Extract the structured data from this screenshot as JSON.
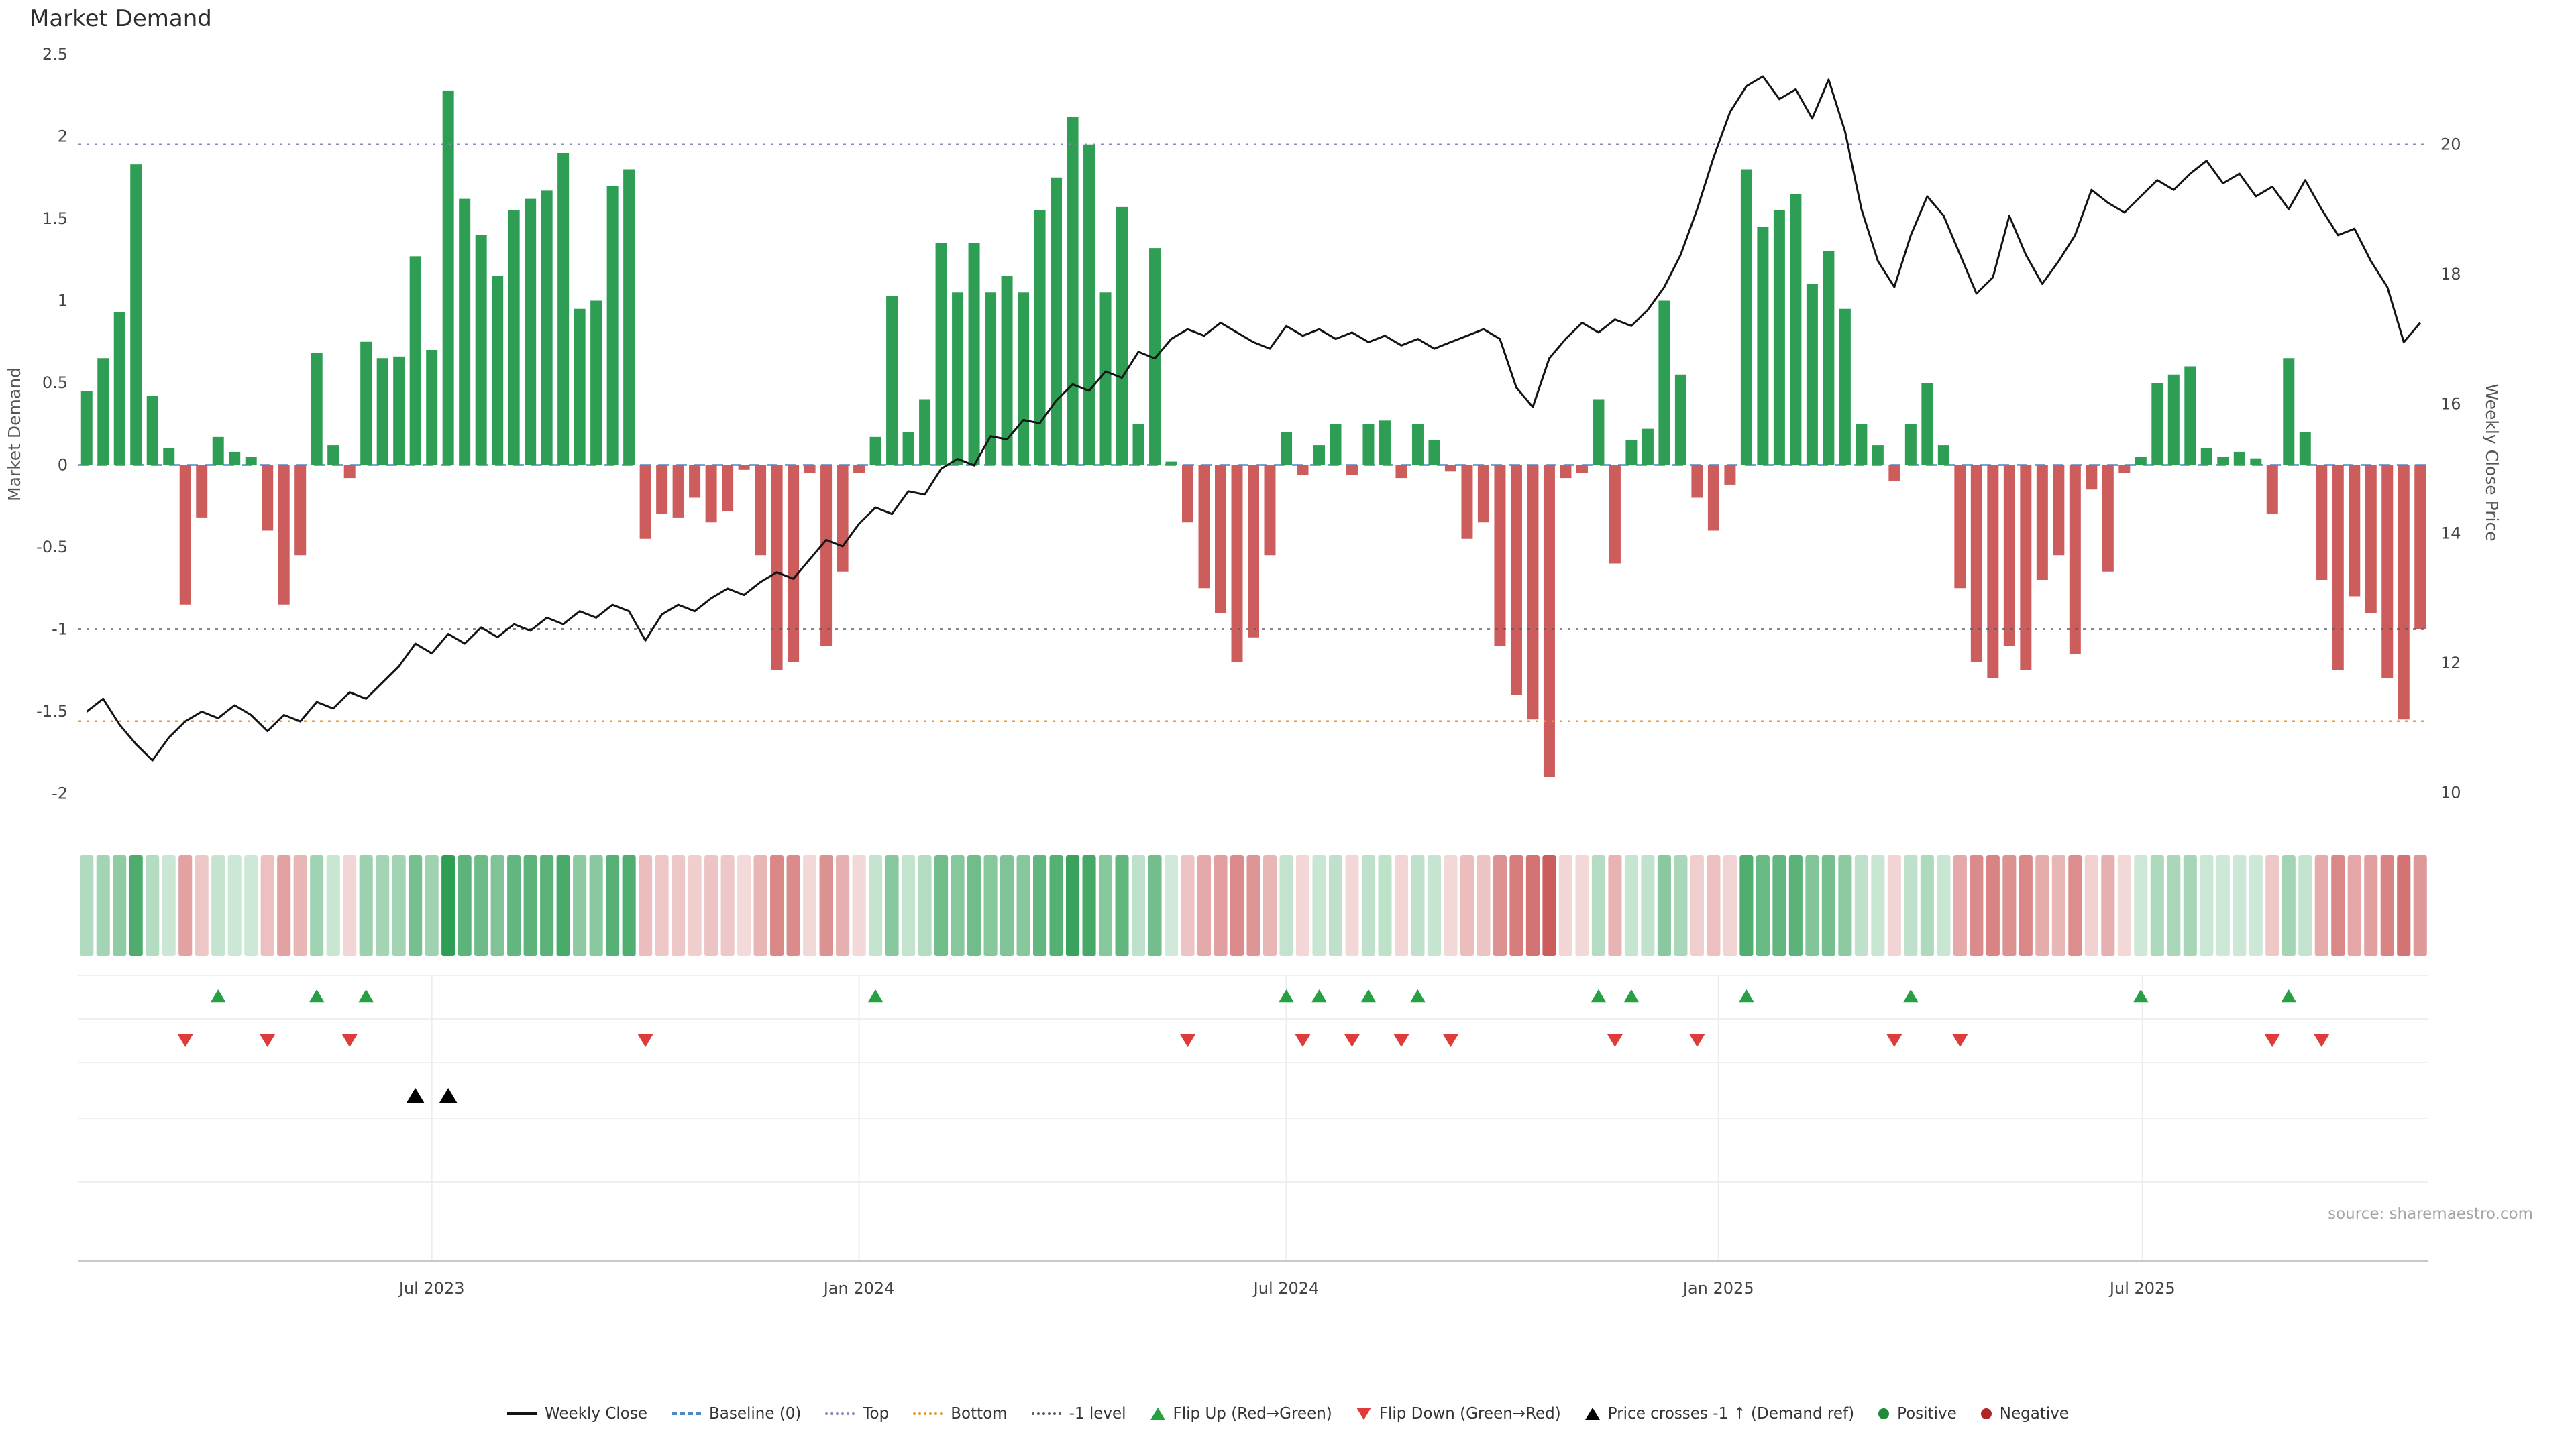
{
  "title": "Market Demand",
  "source": "source: sharemaestro.com",
  "colors": {
    "positive": "#2e9e54",
    "negative": "#cd5c5c",
    "price_line": "#141414",
    "baseline": "#4f86c6",
    "top": "#8a8ab8",
    "bottom": "#e8972f",
    "minus_one": "#5a5a6e",
    "flip_up": "#27a043",
    "flip_down": "#e03b3b",
    "cross": "#000000"
  },
  "chart_data": {
    "type": "combo",
    "x_unit": "week",
    "n_points": 143,
    "x_ticks": [
      {
        "label": "Jul 2023",
        "week": 21
      },
      {
        "label": "Jan 2024",
        "week": 47
      },
      {
        "label": "Jul 2024",
        "week": 73
      },
      {
        "label": "Jan 2025",
        "week": 99.3
      },
      {
        "label": "Jul 2025",
        "week": 125.1
      }
    ],
    "left_axis": {
      "title": "Market Demand",
      "ticks": [
        2.5,
        2,
        1.5,
        1,
        0.5,
        0,
        -0.5,
        -1,
        -1.5,
        -2
      ],
      "range": [
        -2.12,
        2.56
      ]
    },
    "right_axis": {
      "title": "Weekly Close Price",
      "ticks": [
        20,
        18,
        16,
        14,
        12,
        10
      ],
      "range": [
        9.84,
        21.56
      ]
    },
    "reference_lines": [
      {
        "name": "Baseline (0)",
        "value": 0,
        "style": "dashed",
        "color_key": "baseline"
      },
      {
        "name": "Top",
        "value": 1.95,
        "style": "dotted",
        "color_key": "top"
      },
      {
        "name": "Bottom",
        "value": -1.56,
        "style": "dotted",
        "color_key": "bottom"
      },
      {
        "name": "-1 level",
        "value": -1,
        "style": "dotted",
        "color_key": "minus_one"
      }
    ],
    "demand": [
      0.45,
      0.65,
      0.93,
      1.83,
      0.42,
      0.1,
      -0.85,
      -0.32,
      0.17,
      0.08,
      0.05,
      -0.4,
      -0.85,
      -0.55,
      0.68,
      0.12,
      -0.08,
      0.75,
      0.65,
      0.66,
      1.27,
      0.7,
      2.28,
      1.62,
      1.4,
      1.15,
      1.55,
      1.62,
      1.67,
      1.9,
      0.95,
      1.0,
      1.7,
      1.8,
      -0.45,
      -0.3,
      -0.32,
      -0.2,
      -0.35,
      -0.28,
      -0.03,
      -0.55,
      -1.25,
      -1.2,
      -0.05,
      -1.1,
      -0.65,
      -0.05,
      0.17,
      1.03,
      0.2,
      0.4,
      1.35,
      1.05,
      1.35,
      1.05,
      1.15,
      1.05,
      1.55,
      1.75,
      2.12,
      1.95,
      1.05,
      1.57,
      0.25,
      1.32,
      0.02,
      -0.35,
      -0.75,
      -0.9,
      -1.2,
      -1.05,
      -0.55,
      0.2,
      -0.06,
      0.12,
      0.25,
      -0.06,
      0.25,
      0.27,
      -0.08,
      0.25,
      0.15,
      -0.04,
      -0.45,
      -0.35,
      -1.1,
      -1.4,
      -1.55,
      -1.9,
      -0.08,
      -0.05,
      0.4,
      -0.6,
      0.15,
      0.22,
      1.0,
      0.55,
      -0.2,
      -0.4,
      -0.12,
      1.8,
      1.45,
      1.55,
      1.65,
      1.1,
      1.3,
      0.95,
      0.25,
      0.12,
      -0.1,
      0.25,
      0.5,
      0.12,
      -0.75,
      -1.2,
      -1.3,
      -1.1,
      -1.25,
      -0.7,
      -0.55,
      -1.15,
      -0.15,
      -0.65,
      -0.05,
      0.05,
      0.5,
      0.55,
      0.6,
      0.1,
      0.05,
      0.08,
      0.04,
      -0.3,
      0.65,
      0.2,
      -0.7,
      -1.25,
      -0.8,
      -0.9,
      -1.3,
      -1.55,
      -1.0
    ],
    "price": [
      11.25,
      11.45,
      11.05,
      10.75,
      10.5,
      10.85,
      11.1,
      11.25,
      11.15,
      11.35,
      11.2,
      10.95,
      11.2,
      11.1,
      11.4,
      11.3,
      11.55,
      11.45,
      11.7,
      11.95,
      12.3,
      12.15,
      12.45,
      12.3,
      12.55,
      12.4,
      12.6,
      12.5,
      12.7,
      12.6,
      12.8,
      12.7,
      12.9,
      12.8,
      12.35,
      12.75,
      12.9,
      12.8,
      13.0,
      13.15,
      13.05,
      13.25,
      13.4,
      13.3,
      13.6,
      13.9,
      13.8,
      14.15,
      14.4,
      14.3,
      14.65,
      14.6,
      15.0,
      15.15,
      15.05,
      15.5,
      15.45,
      15.75,
      15.7,
      16.05,
      16.3,
      16.2,
      16.5,
      16.4,
      16.8,
      16.7,
      17.0,
      17.15,
      17.05,
      17.25,
      17.1,
      16.95,
      16.85,
      17.2,
      17.05,
      17.15,
      17.0,
      17.1,
      16.95,
      17.05,
      16.9,
      17.0,
      16.85,
      16.95,
      17.05,
      17.15,
      17.0,
      16.25,
      15.95,
      16.7,
      17.0,
      17.25,
      17.1,
      17.3,
      17.2,
      17.45,
      17.8,
      18.3,
      19.0,
      19.8,
      20.5,
      20.9,
      21.05,
      20.7,
      20.85,
      20.4,
      21.0,
      20.2,
      19.0,
      18.2,
      17.8,
      18.6,
      19.2,
      18.9,
      18.3,
      17.7,
      17.95,
      18.9,
      18.3,
      17.85,
      18.2,
      18.6,
      19.3,
      19.1,
      18.95,
      19.2,
      19.45,
      19.3,
      19.55,
      19.75,
      19.4,
      19.55,
      19.2,
      19.35,
      19.0,
      19.45,
      19.0,
      18.6,
      18.7,
      18.2,
      17.8,
      16.95,
      17.25
    ],
    "flip_up_weeks": [
      8,
      14,
      17,
      48,
      73,
      75,
      78,
      81,
      92,
      94,
      101,
      111,
      125,
      134
    ],
    "flip_down_weeks": [
      6,
      11,
      16,
      34,
      67,
      74,
      77,
      80,
      83,
      93,
      98,
      110,
      114,
      133,
      136
    ],
    "price_cross_weeks": [
      20,
      22
    ],
    "heatmap": {
      "values_from": "demand"
    }
  },
  "legend": {
    "items": [
      {
        "label": "Weekly Close",
        "swatch": "line",
        "color": "#141414"
      },
      {
        "label": "Baseline (0)",
        "swatch": "dash",
        "color": "#4f86c6"
      },
      {
        "label": "Top",
        "swatch": "dot",
        "color": "#8a8ab8"
      },
      {
        "label": "Bottom",
        "swatch": "dot",
        "color": "#e8972f"
      },
      {
        "label": "-1 level",
        "swatch": "dot",
        "color": "#5a5a6e"
      },
      {
        "label": "Flip Up (Red→Green)",
        "swatch": "tri-up",
        "color": "#27a043"
      },
      {
        "label": "Flip Down (Green→Red)",
        "swatch": "tri-down",
        "color": "#e03b3b"
      },
      {
        "label": "Price crosses -1 ↑ (Demand ref)",
        "swatch": "tri-up",
        "color": "#000000"
      },
      {
        "label": "Positive",
        "swatch": "circle",
        "color": "#1f8b3a"
      },
      {
        "label": "Negative",
        "swatch": "circle",
        "color": "#b02525"
      }
    ]
  }
}
